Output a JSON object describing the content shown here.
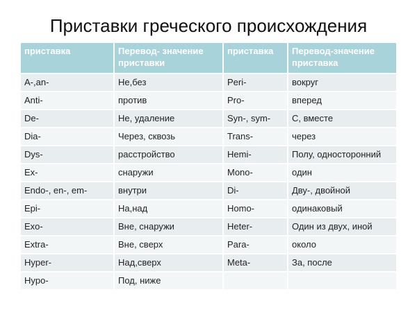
{
  "title": "Приставки греческого  происхождения",
  "table": {
    "headers": [
      "приставка",
      "Перевод- значение приставки",
      "приставка",
      "Перевод-значение приставка"
    ],
    "rows": [
      [
        "A-,an-",
        "Не,без",
        "Peri-",
        "вокруг"
      ],
      [
        "Anti-",
        "против",
        "Pro-",
        "вперед"
      ],
      [
        "De-",
        "Не, удаление",
        "Syn-, sym-",
        "С, вместе"
      ],
      [
        "Dia-",
        "Через, сквозь",
        "Trans-",
        "через"
      ],
      [
        "Dys-",
        "расстройство",
        "Hemi-",
        "Полу, односторонний"
      ],
      [
        "Ex-",
        "снаружи",
        "Mono-",
        "один"
      ],
      [
        "Endo-, en-, em-",
        "внутри",
        "Di-",
        "Дву-, двойной"
      ],
      [
        "Epi-",
        "На,над",
        "Homo-",
        "одинаковый"
      ],
      [
        "Exo-",
        "Вне, снаружи",
        "Heter-",
        "Один из двух, иной"
      ],
      [
        "Extra-",
        "Вне, сверх",
        "Para-",
        "около"
      ],
      [
        "Hyper-",
        "Над,сверх",
        "Meta-",
        "За, после"
      ],
      [
        "Hypo-",
        "Под, ниже",
        "",
        ""
      ]
    ]
  },
  "colors": {
    "header": "#a9d3db",
    "row_odd": "#e8eef0",
    "row_even": "#f3f6f7"
  }
}
